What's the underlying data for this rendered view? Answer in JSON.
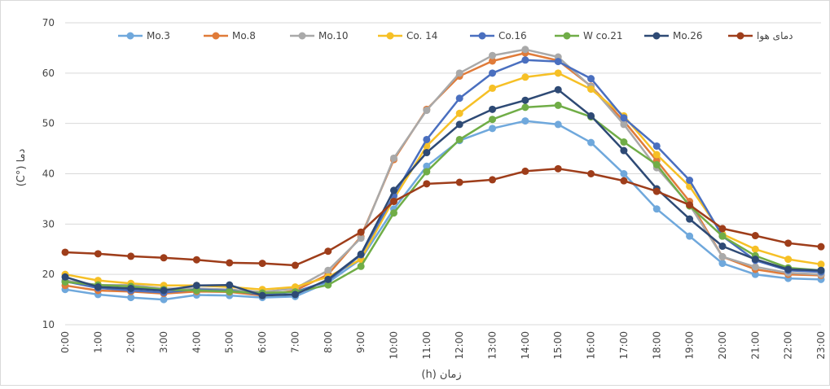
{
  "chart_data": {
    "type": "line",
    "title": "",
    "xlabel": "زمان (h)",
    "ylabel": "دما (°C)",
    "ylim": [
      10,
      70
    ],
    "yticks": [
      10,
      20,
      30,
      40,
      50,
      60,
      70
    ],
    "grid": true,
    "legend_position": "top",
    "categories": [
      "0:00",
      "1:00",
      "2:00",
      "3:00",
      "4:00",
      "5:00",
      "6:00",
      "7:00",
      "8:00",
      "9:00",
      "10:00",
      "11:00",
      "12:00",
      "13:00",
      "14:00",
      "15:00",
      "16:00",
      "17:00",
      "18:00",
      "19:00",
      "20:00",
      "21:00",
      "22:00",
      "23:00"
    ],
    "series": [
      {
        "name": "Mo.3",
        "color": "#6fa8dc",
        "values": [
          17,
          16,
          15.4,
          15,
          15.9,
          15.8,
          15.4,
          15.6,
          18.4,
          23,
          33,
          41.5,
          46.6,
          49,
          50.5,
          49.8,
          46.2,
          40,
          33,
          27.6,
          22.2,
          20,
          19.2,
          19
        ]
      },
      {
        "name": "Mo.8",
        "color": "#e07b39",
        "values": [
          17.8,
          16.8,
          16.6,
          16.2,
          16.6,
          16.5,
          15.8,
          16.8,
          20,
          27.5,
          42.8,
          52.8,
          59.4,
          62.4,
          64,
          62.5,
          57.4,
          50.5,
          42.6,
          34.5,
          23.5,
          21,
          20,
          19.8
        ]
      },
      {
        "name": "Mo.10",
        "color": "#a9a9a9",
        "values": [
          18.8,
          17.9,
          17.9,
          17.2,
          17.2,
          17,
          16.5,
          17.2,
          20.8,
          27.2,
          43.1,
          52.6,
          60,
          63.5,
          64.7,
          63.2,
          57.3,
          49.8,
          41.2,
          33.8,
          23.5,
          21.5,
          20.3,
          20
        ]
      },
      {
        "name": "Co. 14",
        "color": "#f6c026",
        "values": [
          20,
          18.8,
          18.2,
          17.8,
          17.8,
          17.5,
          17,
          17.5,
          19.5,
          23,
          35,
          45.5,
          52,
          57,
          59.2,
          60,
          56.8,
          51.5,
          43.8,
          37.5,
          28,
          25,
          23,
          22
        ]
      },
      {
        "name": "Co.16",
        "color": "#4a6fbf",
        "values": [
          18.6,
          17.3,
          16.8,
          16.4,
          17,
          16.8,
          16,
          16.5,
          18.7,
          23.9,
          35.6,
          46.8,
          55,
          60,
          62.6,
          62.3,
          58.9,
          51.1,
          45.5,
          38.7,
          27.6,
          22.8,
          20.8,
          20.5
        ]
      },
      {
        "name": "W co.21",
        "color": "#70ad47",
        "values": [
          18.5,
          17.9,
          17.6,
          17,
          16.8,
          16.6,
          16.3,
          16.5,
          17.9,
          21.6,
          32.2,
          40.4,
          46.8,
          50.8,
          53.2,
          53.6,
          51.3,
          46.3,
          41.8,
          33.6,
          27.6,
          23.7,
          21.3,
          20.8
        ]
      },
      {
        "name": "Mo.26",
        "color": "#2e4a75",
        "values": [
          19.5,
          17.5,
          17.2,
          16.8,
          17.8,
          17.9,
          15.8,
          16,
          19,
          24,
          36.7,
          44.2,
          49.8,
          52.8,
          54.6,
          56.7,
          51.5,
          44.6,
          37,
          31,
          25.6,
          23,
          21,
          20.8
        ]
      },
      {
        "name": "دمای هوا",
        "color": "#9e3d1a",
        "values": [
          24.4,
          24.1,
          23.6,
          23.3,
          22.9,
          22.3,
          22.2,
          21.8,
          24.6,
          28.4,
          34.5,
          38,
          38.3,
          38.8,
          40.5,
          41,
          40,
          38.6,
          36.5,
          33.8,
          29.1,
          27.7,
          26.2,
          25.5
        ]
      }
    ]
  }
}
